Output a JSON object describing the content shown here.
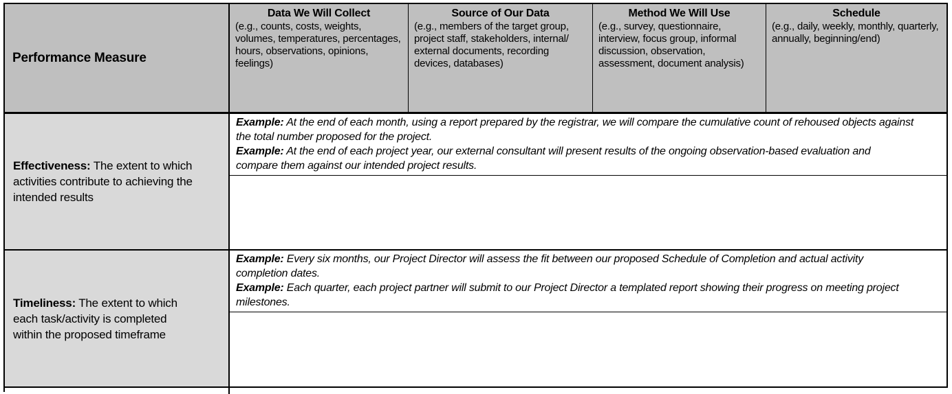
{
  "table": {
    "header": {
      "performance_measure": {
        "title": "Performance Measure"
      },
      "data_collect": {
        "title": "Data We Will Collect",
        "subtitle": "(e.g., counts, costs, weights, volumes, temperatures, percentages, hours, observations, opinions, feelings)"
      },
      "source": {
        "title": "Source of Our Data",
        "subtitle": "(e.g., members of the target group, project staff, stakeholders, internal/ external documents, recording devices, databases)"
      },
      "method": {
        "title": "Method We Will Use",
        "subtitle": "(e.g., survey, questionnaire, interview, focus group, informal discussion, observation, assessment, document analysis)"
      },
      "schedule": {
        "title": "Schedule",
        "subtitle": "(e.g., daily, weekly, monthly, quarterly, annually, beginning/end)"
      }
    },
    "rows": [
      {
        "measure_term": "Effectiveness:",
        "measure_desc": " The extent to which activities contribute to achieving the intended results",
        "examples": [
          {
            "label": "Example:",
            "text": " At the end of each month, using a report prepared by the registrar, we will compare the cumulative count of rehoused objects against the total number proposed for the project."
          },
          {
            "label": "Example:",
            "text": " At the end of each project year, our external consultant will present results of the ongoing observation-based evaluation and compare them against our intended project results."
          }
        ],
        "entry_value": ""
      },
      {
        "measure_term": "Timeliness:",
        "measure_desc": " The extent to which each task/activity is completed within the proposed timeframe",
        "examples": [
          {
            "label": "Example:",
            "text": " Every six months, our Project Director will assess the fit between our proposed Schedule of Completion and actual activity completion dates."
          },
          {
            "label": "Example:",
            "text": " Each quarter, each project partner will submit to our Project Director a templated report showing their progress on meeting project milestones."
          }
        ],
        "entry_value": ""
      }
    ],
    "colors": {
      "header_bg": "#bfbfbf",
      "row_label_bg": "#d9d9d9",
      "border": "#000000",
      "page_bg": "#ffffff"
    }
  }
}
